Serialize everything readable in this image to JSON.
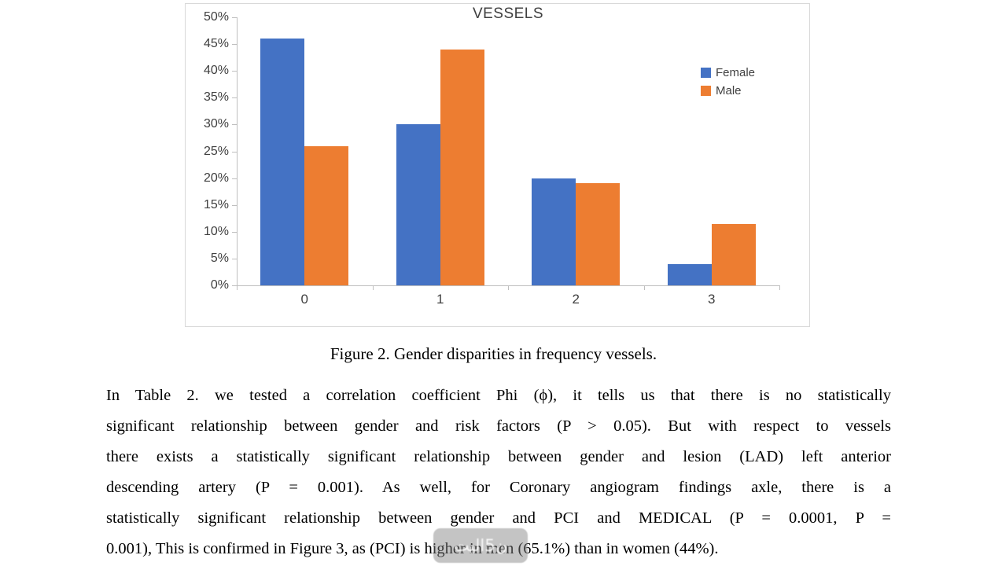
{
  "chart_data": {
    "type": "bar",
    "title": "VESSELS",
    "categories": [
      "0",
      "1",
      "2",
      "3"
    ],
    "series": [
      {
        "name": "Female",
        "color": "#4472C4",
        "values": [
          46,
          30,
          20,
          4
        ]
      },
      {
        "name": "Male",
        "color": "#ED7D31",
        "values": [
          26,
          44,
          19,
          11.5
        ]
      }
    ],
    "xlabel": "",
    "ylabel": "",
    "ylim": [
      0,
      50
    ],
    "ytick_step": 5,
    "ytick_labels": [
      "0%",
      "5%",
      "10%",
      "15%",
      "20%",
      "25%",
      "30%",
      "35%",
      "40%",
      "45%",
      "50%"
    ],
    "grid": false,
    "legend_position": "right"
  },
  "caption": "Figure 2. Gender disparities in frequency vessels.",
  "paragraph_lines": [
    "In Table 2. we tested a correlation coefficient Phi (ϕ), it tells us that there is no statistically",
    "significant relationship between gender and risk factors (P > 0.05). But with respect to vessels",
    "there exists a statistically significant relationship between gender and lesion (LAD) left anterior",
    "descending artery (P = 0.001). As well, for Coronary angiogram findings axle,  there is a",
    "statistically significant relationship between gender and PCI and MEDICAL (P = 0.0001, P =",
    "0.001), This is confirmed in Figure 3, as (PCI) is higher in men (65.1%) than in women (44%)."
  ],
  "watermark": {
    "text": "ن5اليت"
  }
}
